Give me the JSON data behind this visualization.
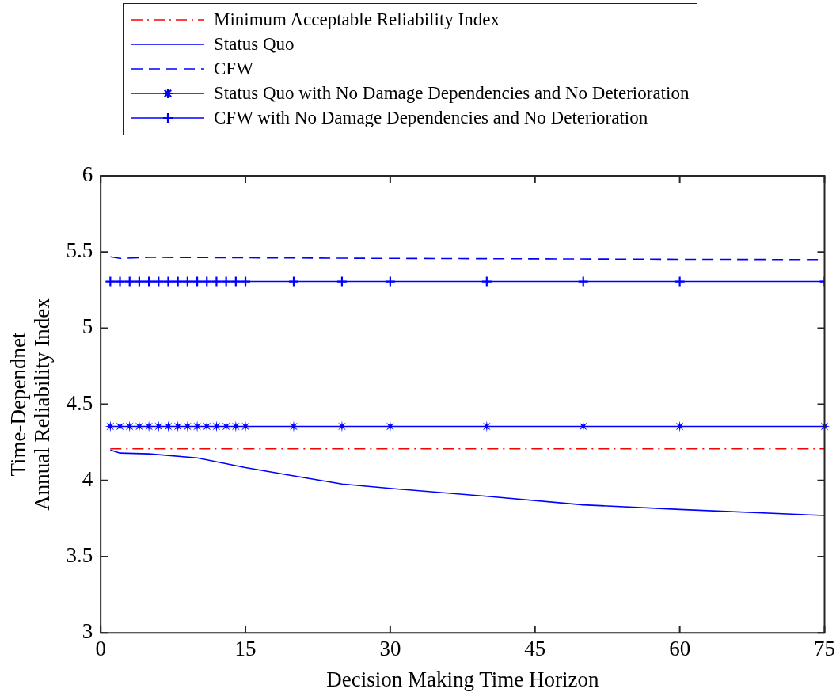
{
  "chart_data": {
    "type": "line",
    "xlabel": "Decision Making Time Horizon",
    "ylabel": "Time-Dependnet\nAnnual Reliability Index",
    "xlim": [
      0,
      75
    ],
    "xticks": [
      0,
      15,
      30,
      45,
      60,
      75
    ],
    "ylim": [
      3,
      6
    ],
    "yticks": [
      3,
      3.5,
      4,
      4.5,
      5,
      5.5,
      6
    ],
    "legend": "top",
    "series": [
      {
        "name": "Minimum Acceptable Reliability Index",
        "color": "#ff0000",
        "line_style": "dashdot",
        "marker": "none",
        "x": [
          1,
          75
        ],
        "values": [
          4.208,
          4.208
        ]
      },
      {
        "name": "Status Quo",
        "color": "#0000ff",
        "line_style": "solid",
        "marker": "none",
        "x": [
          1,
          2,
          5,
          10,
          15,
          20,
          25,
          30,
          40,
          50,
          60,
          75
        ],
        "values": [
          4.2,
          4.18,
          4.175,
          4.148,
          4.085,
          4.03,
          3.977,
          3.948,
          3.896,
          3.84,
          3.81,
          3.77
        ]
      },
      {
        "name": "CFW",
        "color": "#0000ff",
        "line_style": "dashed",
        "marker": "none",
        "x": [
          1,
          2,
          5,
          15,
          30,
          45,
          60,
          75
        ],
        "values": [
          5.469,
          5.458,
          5.465,
          5.462,
          5.458,
          5.455,
          5.452,
          5.45
        ]
      },
      {
        "name": "Status Quo with No Damage Dependencies and No Deterioration",
        "color": "#0000ff",
        "line_style": "solid",
        "marker": "star",
        "x": [
          1,
          2,
          3,
          4,
          5,
          6,
          7,
          8,
          9,
          10,
          11,
          12,
          13,
          14,
          15,
          20,
          25,
          30,
          40,
          50,
          60,
          75
        ],
        "values": [
          4.355,
          4.355,
          4.355,
          4.355,
          4.355,
          4.355,
          4.355,
          4.355,
          4.355,
          4.355,
          4.355,
          4.355,
          4.355,
          4.355,
          4.355,
          4.355,
          4.355,
          4.355,
          4.355,
          4.355,
          4.355,
          4.355
        ]
      },
      {
        "name": "CFW with No Damage Dependencies and No Deterioration",
        "color": "#0000ff",
        "line_style": "solid",
        "marker": "cross",
        "x": [
          1,
          2,
          3,
          4,
          5,
          6,
          7,
          8,
          9,
          10,
          11,
          12,
          13,
          14,
          15,
          20,
          25,
          30,
          40,
          50,
          60,
          75
        ],
        "values": [
          5.306,
          5.306,
          5.306,
          5.306,
          5.306,
          5.306,
          5.306,
          5.306,
          5.306,
          5.306,
          5.306,
          5.306,
          5.306,
          5.306,
          5.306,
          5.306,
          5.306,
          5.306,
          5.306,
          5.306,
          5.306,
          5.306
        ]
      }
    ]
  }
}
